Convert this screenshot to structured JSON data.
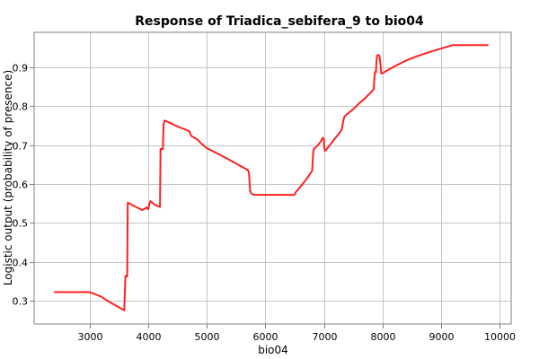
{
  "chart_data": {
    "type": "line",
    "title": "Response of Triadica_sebifera_9 to bio04",
    "xlabel": "bio04",
    "ylabel": "Logistic output (probability of presence)",
    "xlim": [
      2050,
      10200
    ],
    "ylim": [
      0.24,
      0.99
    ],
    "xticks": [
      3000,
      4000,
      5000,
      6000,
      7000,
      8000,
      9000,
      10000
    ],
    "yticks": [
      0.3,
      0.4,
      0.5,
      0.6,
      0.7,
      0.8,
      0.9
    ],
    "grid": true,
    "line_color": "#ff2020",
    "series": [
      {
        "x": [
          2400,
          3000,
          3200,
          3300,
          3590,
          3610,
          3615,
          3640,
          3650,
          3700,
          3800,
          3900,
          3950,
          3970,
          4000,
          4020,
          4040,
          4060,
          4100,
          4150,
          4200,
          4210,
          4220,
          4250,
          4260,
          4280,
          4300,
          4400,
          4500,
          4600,
          4700,
          4720,
          4740,
          4800,
          4850,
          4900,
          5000,
          5200,
          5400,
          5600,
          5700,
          5720,
          5740,
          5760,
          5800,
          6000,
          6200,
          6400,
          6500,
          6520,
          6560,
          6600,
          6700,
          6800,
          6810,
          6820,
          6830,
          6900,
          6950,
          6980,
          7000,
          7010,
          7020,
          7050,
          7100,
          7300,
          7310,
          7330,
          7350,
          7400,
          7500,
          7600,
          7700,
          7800,
          7850,
          7870,
          7880,
          7890,
          7900,
          7910,
          7920,
          7950,
          7970,
          7980,
          8000,
          8050,
          8200,
          8400,
          8600,
          8800,
          9000,
          9200,
          9400,
          9600,
          9800
        ],
        "y": [
          0.322,
          0.322,
          0.31,
          0.3,
          0.275,
          0.362,
          0.364,
          0.362,
          0.552,
          0.548,
          0.54,
          0.533,
          0.537,
          0.54,
          0.535,
          0.55,
          0.556,
          0.553,
          0.548,
          0.544,
          0.541,
          0.69,
          0.69,
          0.689,
          0.752,
          0.763,
          0.762,
          0.755,
          0.748,
          0.742,
          0.736,
          0.728,
          0.723,
          0.718,
          0.713,
          0.705,
          0.692,
          0.677,
          0.661,
          0.644,
          0.636,
          0.63,
          0.582,
          0.576,
          0.572,
          0.572,
          0.572,
          0.572,
          0.572,
          0.579,
          0.586,
          0.593,
          0.612,
          0.634,
          0.66,
          0.684,
          0.69,
          0.7,
          0.71,
          0.719,
          0.715,
          0.69,
          0.685,
          0.69,
          0.7,
          0.738,
          0.745,
          0.76,
          0.773,
          0.78,
          0.792,
          0.807,
          0.82,
          0.835,
          0.843,
          0.885,
          0.889,
          0.887,
          0.915,
          0.93,
          0.932,
          0.93,
          0.904,
          0.884,
          0.885,
          0.889,
          0.902,
          0.917,
          0.929,
          0.939,
          0.948,
          0.957,
          0.957,
          0.957,
          0.957
        ]
      }
    ]
  }
}
